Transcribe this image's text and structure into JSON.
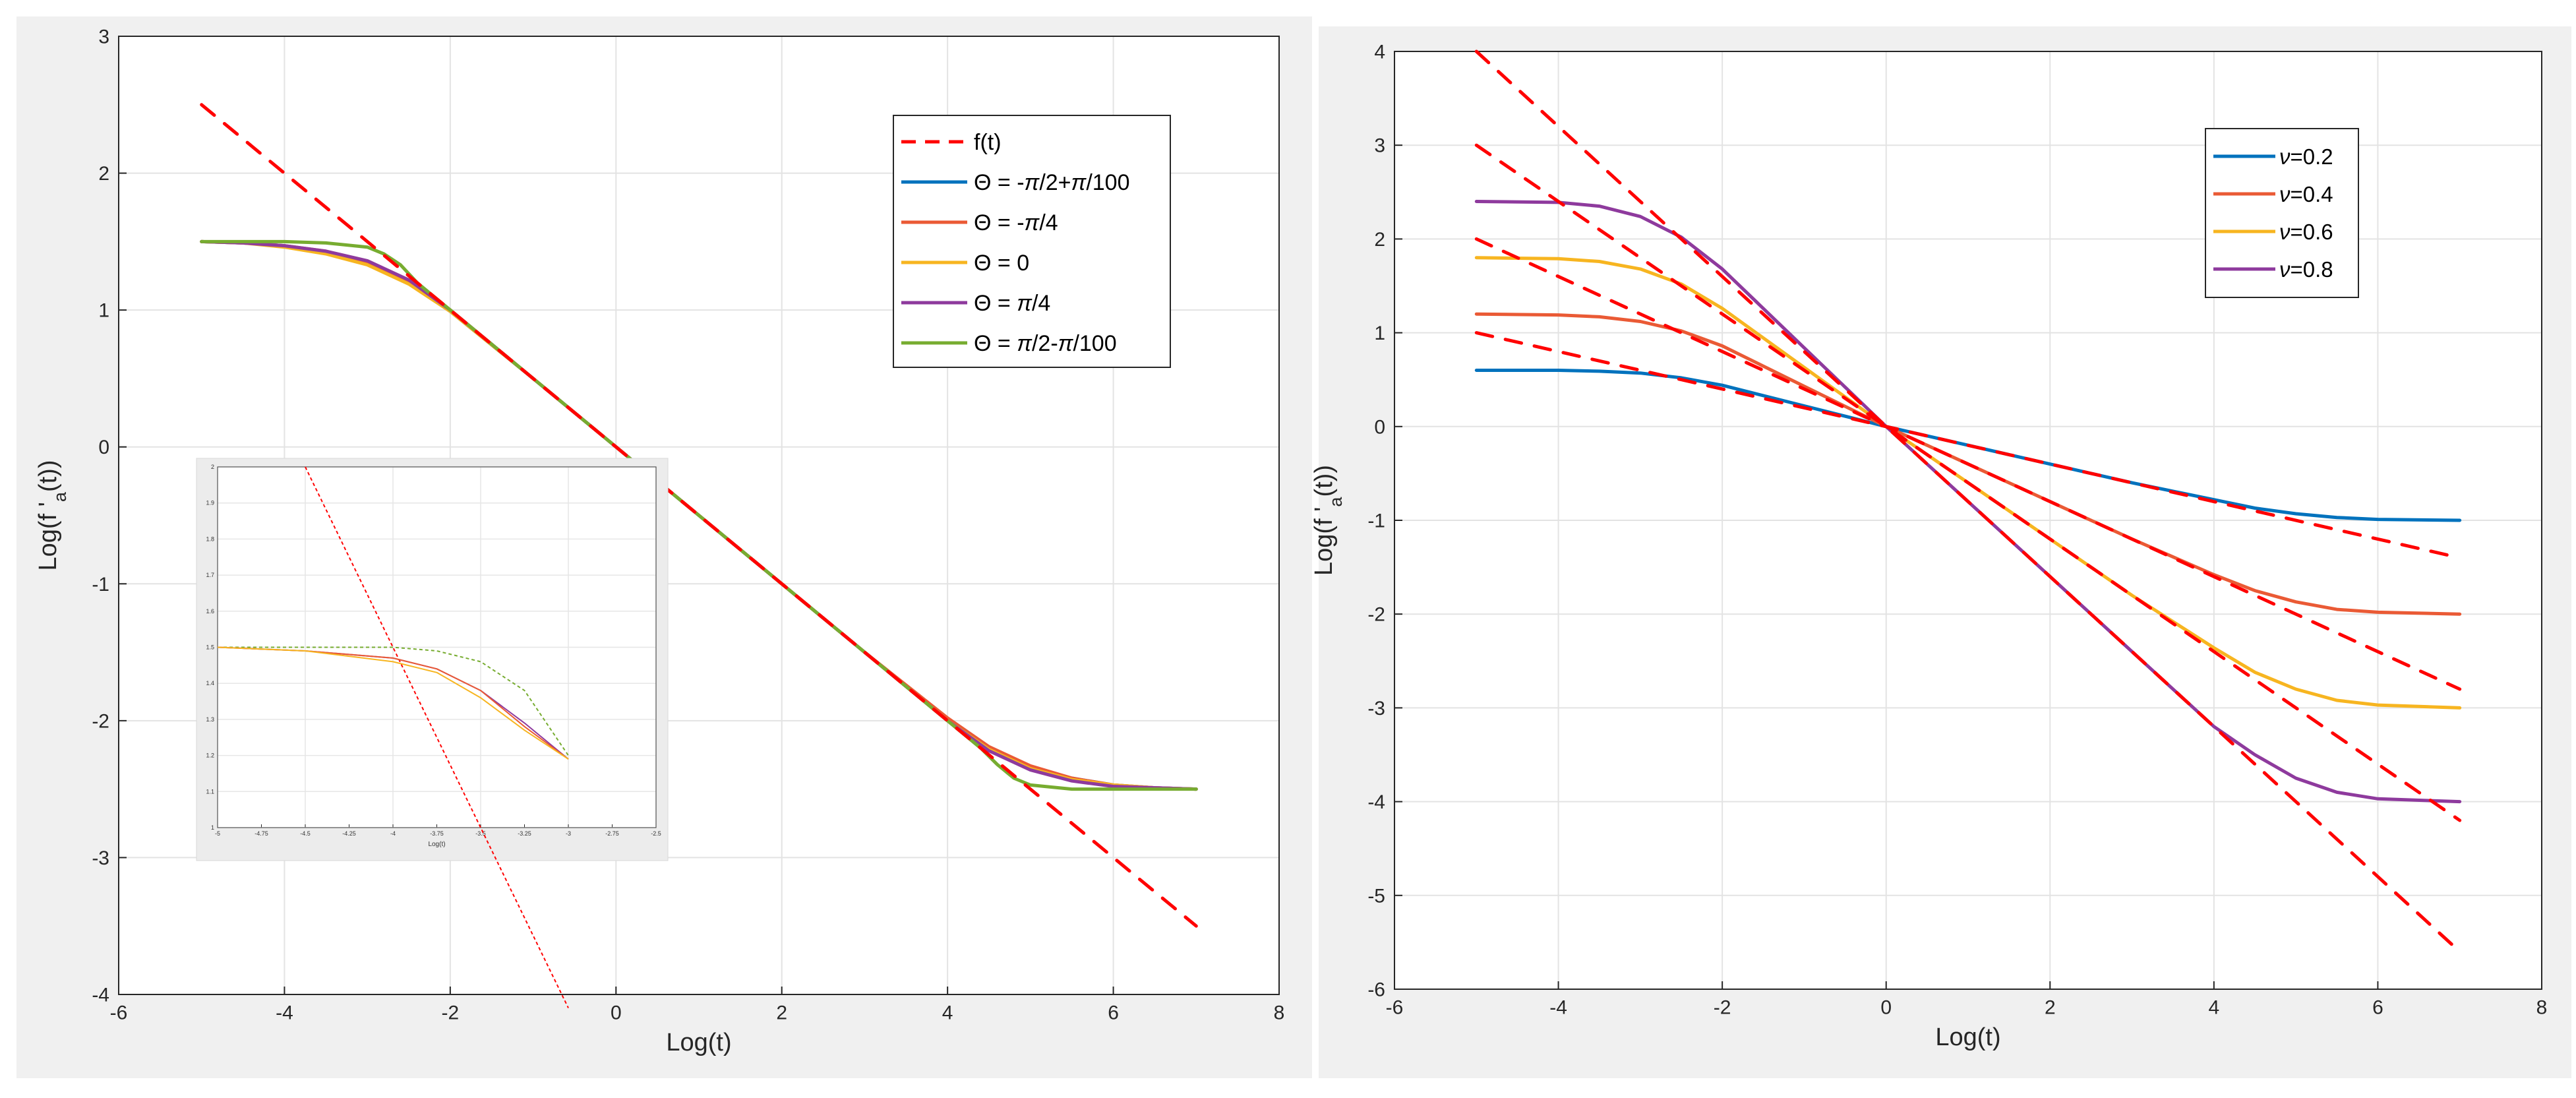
{
  "colors": {
    "background": "#ffffff",
    "figure_panel": "#f0f0f0",
    "axes_bg": "#ffffff",
    "grid": "#e3e3e3",
    "axis": "#262626",
    "legend_border": "#262626",
    "f_line": "#ff0000",
    "blue": "#0072bd",
    "orange": "#ea5a35",
    "yellow": "#f7b520",
    "purple": "#8e3a9d",
    "green": "#77ac30"
  },
  "chart_data": [
    {
      "type": "line",
      "name": "left",
      "title": "",
      "xlabel": "Log(t)",
      "ylabel": "Log(f '_a(t))",
      "ylabel_parts": {
        "pre": "Log(f '",
        "sub": "a",
        "post": "(t))"
      },
      "xlim": [
        -6,
        8
      ],
      "ylim": [
        -4,
        3
      ],
      "xticks": [
        -6,
        -4,
        -2,
        0,
        2,
        4,
        6,
        8
      ],
      "xtick_labels": [
        "-6",
        "-4",
        "-2",
        "0",
        "2",
        "4",
        "6",
        "8"
      ],
      "yticks": [
        -4,
        -3,
        -2,
        -1,
        0,
        1,
        2,
        3
      ],
      "ytick_labels": [
        "-4",
        "-3",
        "-2",
        "-1",
        "0",
        "1",
        "2",
        "3"
      ],
      "grid": true,
      "legend_position": "top-right",
      "series": [
        {
          "name": "f(t)",
          "color": "#ff0000",
          "dashed": true,
          "x": [
            -5,
            7
          ],
          "y": [
            2.5,
            -3.5
          ]
        },
        {
          "name": "Θ = -π/2+π/100",
          "label_parts": [
            "Θ = -",
            "π",
            "/2+",
            "π",
            "/100"
          ],
          "color": "#0072bd",
          "dashed": false,
          "x": [
            -5,
            -4.5,
            -4,
            -3.5,
            -3,
            -2.5,
            -2,
            -1,
            0,
            1,
            2,
            3,
            4,
            4.5,
            5,
            5.5,
            6,
            6.5,
            7
          ],
          "y": [
            1.5,
            1.49,
            1.47,
            1.42,
            1.34,
            1.2,
            0.99,
            0.5,
            0.0,
            -0.5,
            -1.0,
            -1.5,
            -1.99,
            -2.2,
            -2.34,
            -2.42,
            -2.47,
            -2.49,
            -2.5
          ]
        },
        {
          "name": "Θ = -π/4",
          "label_parts": [
            "Θ = -",
            "π",
            "/4"
          ],
          "color": "#ea5a35",
          "dashed": false,
          "x": [
            -5,
            -4.5,
            -4,
            -3.5,
            -3,
            -2.5,
            -2,
            -1,
            0,
            1,
            2,
            3,
            4,
            4.5,
            5,
            5.5,
            6,
            6.5,
            7
          ],
          "y": [
            1.5,
            1.49,
            1.47,
            1.43,
            1.35,
            1.21,
            1.0,
            0.5,
            0.0,
            -0.5,
            -1.0,
            -1.5,
            -1.98,
            -2.19,
            -2.33,
            -2.42,
            -2.47,
            -2.49,
            -2.5
          ]
        },
        {
          "name": "Θ = 0",
          "label_parts": [
            "Θ = 0"
          ],
          "color": "#f7b520",
          "dashed": false,
          "x": [
            -5,
            -4.5,
            -4,
            -3.5,
            -3,
            -2.5,
            -2,
            -1,
            0,
            1,
            2,
            3,
            4,
            4.5,
            5,
            5.5,
            6,
            6.5,
            7
          ],
          "y": [
            1.5,
            1.49,
            1.46,
            1.41,
            1.33,
            1.19,
            0.99,
            0.5,
            0.0,
            -0.5,
            -1.0,
            -1.5,
            -2.0,
            -2.21,
            -2.35,
            -2.43,
            -2.47,
            -2.49,
            -2.5
          ]
        },
        {
          "name": "Θ = π/4",
          "label_parts": [
            "Θ = ",
            "π",
            "/4"
          ],
          "color": "#8e3a9d",
          "dashed": false,
          "x": [
            -5,
            -4.5,
            -4,
            -3.5,
            -3,
            -2.5,
            -2,
            -1,
            0,
            1,
            2,
            3,
            4,
            4.5,
            5,
            5.5,
            6,
            6.5,
            7
          ],
          "y": [
            1.5,
            1.49,
            1.47,
            1.43,
            1.36,
            1.22,
            1.0,
            0.5,
            0.0,
            -0.5,
            -1.0,
            -1.5,
            -2.0,
            -2.22,
            -2.36,
            -2.44,
            -2.48,
            -2.49,
            -2.5
          ]
        },
        {
          "name": "Θ = π/2-π/100",
          "label_parts": [
            "Θ = ",
            "π",
            "/2-",
            "π",
            "/100"
          ],
          "color": "#77ac30",
          "dashed": false,
          "x": [
            -5,
            -4.5,
            -4,
            -3.5,
            -3,
            -2.8,
            -2.6,
            -2.4,
            -2,
            -1,
            0,
            1,
            2,
            3,
            4,
            4.4,
            4.6,
            4.8,
            5,
            5.5,
            6,
            6.5,
            7
          ],
          "y": [
            1.5,
            1.5,
            1.5,
            1.49,
            1.46,
            1.41,
            1.33,
            1.2,
            1.0,
            0.5,
            0.0,
            -0.5,
            -1.0,
            -1.5,
            -2.0,
            -2.2,
            -2.32,
            -2.42,
            -2.47,
            -2.5,
            -2.5,
            -2.5,
            -2.5
          ]
        }
      ],
      "inset": {
        "xlabel": "Log(t)",
        "xlim": [
          -5,
          -2.5
        ],
        "ylim": [
          1,
          2
        ],
        "xticks": [
          -5,
          -4.75,
          -4.5,
          -4.25,
          -4,
          -3.75,
          -3.5,
          -3.25,
          -3,
          -2.75,
          -2.5
        ],
        "xtick_labels": [
          "-5",
          "-4.75",
          "-4.5",
          "-4.25",
          "-4",
          "-3.75",
          "-3.5",
          "-3.25",
          "-3",
          "-2.75",
          "-2.5"
        ],
        "yticks": [
          1,
          1.1,
          1.2,
          1.3,
          1.4,
          1.5,
          1.6,
          1.7,
          1.8,
          1.9,
          2
        ],
        "ytick_labels": [
          "1",
          "1.1",
          "1.2",
          "1.3",
          "1.4",
          "1.5",
          "1.6",
          "1.7",
          "1.8",
          "1.9",
          "2"
        ],
        "series": [
          {
            "name": "f(t)",
            "color": "#ff0000",
            "dashed": true,
            "x": [
              -4.5,
              -3
            ],
            "y": [
              2,
              0.5
            ]
          },
          {
            "name": "Θ = π/2-π/100",
            "color": "#77ac30",
            "dashed": true,
            "x": [
              -5,
              -4.5,
              -4,
              -3.75,
              -3.5,
              -3.25,
              -3
            ],
            "y": [
              1.5,
              1.5,
              1.5,
              1.49,
              1.46,
              1.38,
              1.2
            ]
          },
          {
            "name": "Θ = π/4",
            "color": "#8e3a9d",
            "dashed": false,
            "x": [
              -5,
              -4.5,
              -4,
              -3.75,
              -3.5,
              -3.25,
              -3
            ],
            "y": [
              1.5,
              1.49,
              1.47,
              1.44,
              1.38,
              1.29,
              1.19
            ]
          },
          {
            "name": "Θ = -π/4",
            "color": "#ea5a35",
            "dashed": false,
            "x": [
              -5,
              -4.5,
              -4,
              -3.75,
              -3.5,
              -3.25,
              -3
            ],
            "y": [
              1.5,
              1.49,
              1.47,
              1.44,
              1.38,
              1.28,
              1.19
            ]
          },
          {
            "name": "Θ = 0",
            "color": "#f7b520",
            "dashed": false,
            "x": [
              -5,
              -4.5,
              -4,
              -3.75,
              -3.5,
              -3.25,
              -3
            ],
            "y": [
              1.5,
              1.49,
              1.46,
              1.43,
              1.36,
              1.27,
              1.19
            ]
          }
        ]
      }
    },
    {
      "type": "line",
      "name": "right",
      "title": "",
      "xlabel": "Log(t)",
      "ylabel": "Log(f '_a(t))",
      "ylabel_parts": {
        "pre": "Log(f '",
        "sub": "a",
        "post": "(t))"
      },
      "xlim": [
        -6,
        8
      ],
      "ylim": [
        -6,
        4
      ],
      "xticks": [
        -6,
        -4,
        -2,
        0,
        2,
        4,
        6,
        8
      ],
      "xtick_labels": [
        "-6",
        "-4",
        "-2",
        "0",
        "2",
        "4",
        "6",
        "8"
      ],
      "yticks": [
        -6,
        -5,
        -4,
        -3,
        -2,
        -1,
        0,
        1,
        2,
        3,
        4
      ],
      "ytick_labels": [
        "-6",
        "-5",
        "-4",
        "-3",
        "-2",
        "-1",
        "0",
        "1",
        "2",
        "3",
        "4"
      ],
      "grid": true,
      "legend_position": "top-right",
      "series": [
        {
          "name": "ν=0.2",
          "label_parts": [
            "ν",
            "=0.2"
          ],
          "color": "#0072bd",
          "dashed": false,
          "x": [
            -5,
            -4,
            -3.5,
            -3,
            -2.5,
            -2,
            -1,
            0,
            1,
            2,
            3,
            4,
            4.5,
            5,
            5.5,
            6,
            7
          ],
          "y": [
            0.6,
            0.6,
            0.59,
            0.57,
            0.52,
            0.44,
            0.22,
            0.0,
            -0.2,
            -0.4,
            -0.6,
            -0.78,
            -0.87,
            -0.93,
            -0.97,
            -0.99,
            -1.0
          ]
        },
        {
          "name": "ν=0.4",
          "label_parts": [
            "ν",
            "=0.4"
          ],
          "color": "#ea5a35",
          "dashed": false,
          "x": [
            -5,
            -4,
            -3.5,
            -3,
            -2.5,
            -2,
            -1,
            0,
            1,
            2,
            3,
            4,
            4.5,
            5,
            5.5,
            6,
            7
          ],
          "y": [
            1.2,
            1.19,
            1.17,
            1.12,
            1.02,
            0.86,
            0.43,
            0.0,
            -0.4,
            -0.8,
            -1.2,
            -1.58,
            -1.75,
            -1.87,
            -1.95,
            -1.98,
            -2.0
          ]
        },
        {
          "name": "ν=0.6",
          "label_parts": [
            "ν",
            "=0.6"
          ],
          "color": "#f7b520",
          "dashed": false,
          "x": [
            -5,
            -4,
            -3.5,
            -3,
            -2.5,
            -2,
            -1,
            0,
            1,
            2,
            3,
            4,
            4.5,
            5,
            5.5,
            6,
            7
          ],
          "y": [
            1.8,
            1.79,
            1.76,
            1.68,
            1.52,
            1.26,
            0.63,
            0.0,
            -0.6,
            -1.2,
            -1.8,
            -2.36,
            -2.62,
            -2.8,
            -2.92,
            -2.97,
            -3.0
          ]
        },
        {
          "name": "ν=0.8",
          "label_parts": [
            "ν",
            "=0.8"
          ],
          "color": "#8e3a9d",
          "dashed": false,
          "x": [
            -5,
            -4,
            -3.5,
            -3,
            -2.5,
            -2,
            -1,
            0,
            1,
            2,
            3,
            4,
            4.5,
            5,
            5.5,
            6,
            7
          ],
          "y": [
            2.4,
            2.39,
            2.35,
            2.24,
            2.02,
            1.68,
            0.84,
            0.0,
            -0.8,
            -1.6,
            -2.4,
            -3.2,
            -3.5,
            -3.75,
            -3.9,
            -3.97,
            -4.0
          ]
        }
      ],
      "asymptotes": [
        {
          "name": "f(t) ν=0.2",
          "color": "#ff0000",
          "dashed": true,
          "x": [
            -5,
            7
          ],
          "y": [
            1,
            -1.4
          ]
        },
        {
          "name": "f(t) ν=0.4",
          "color": "#ff0000",
          "dashed": true,
          "x": [
            -5,
            7
          ],
          "y": [
            2,
            -2.8
          ]
        },
        {
          "name": "f(t) ν=0.6",
          "color": "#ff0000",
          "dashed": true,
          "x": [
            -5,
            7
          ],
          "y": [
            3,
            -4.2
          ]
        },
        {
          "name": "f(t) ν=0.8",
          "color": "#ff0000",
          "dashed": true,
          "x": [
            -5,
            7
          ],
          "y": [
            4,
            -5.6
          ]
        }
      ]
    }
  ]
}
